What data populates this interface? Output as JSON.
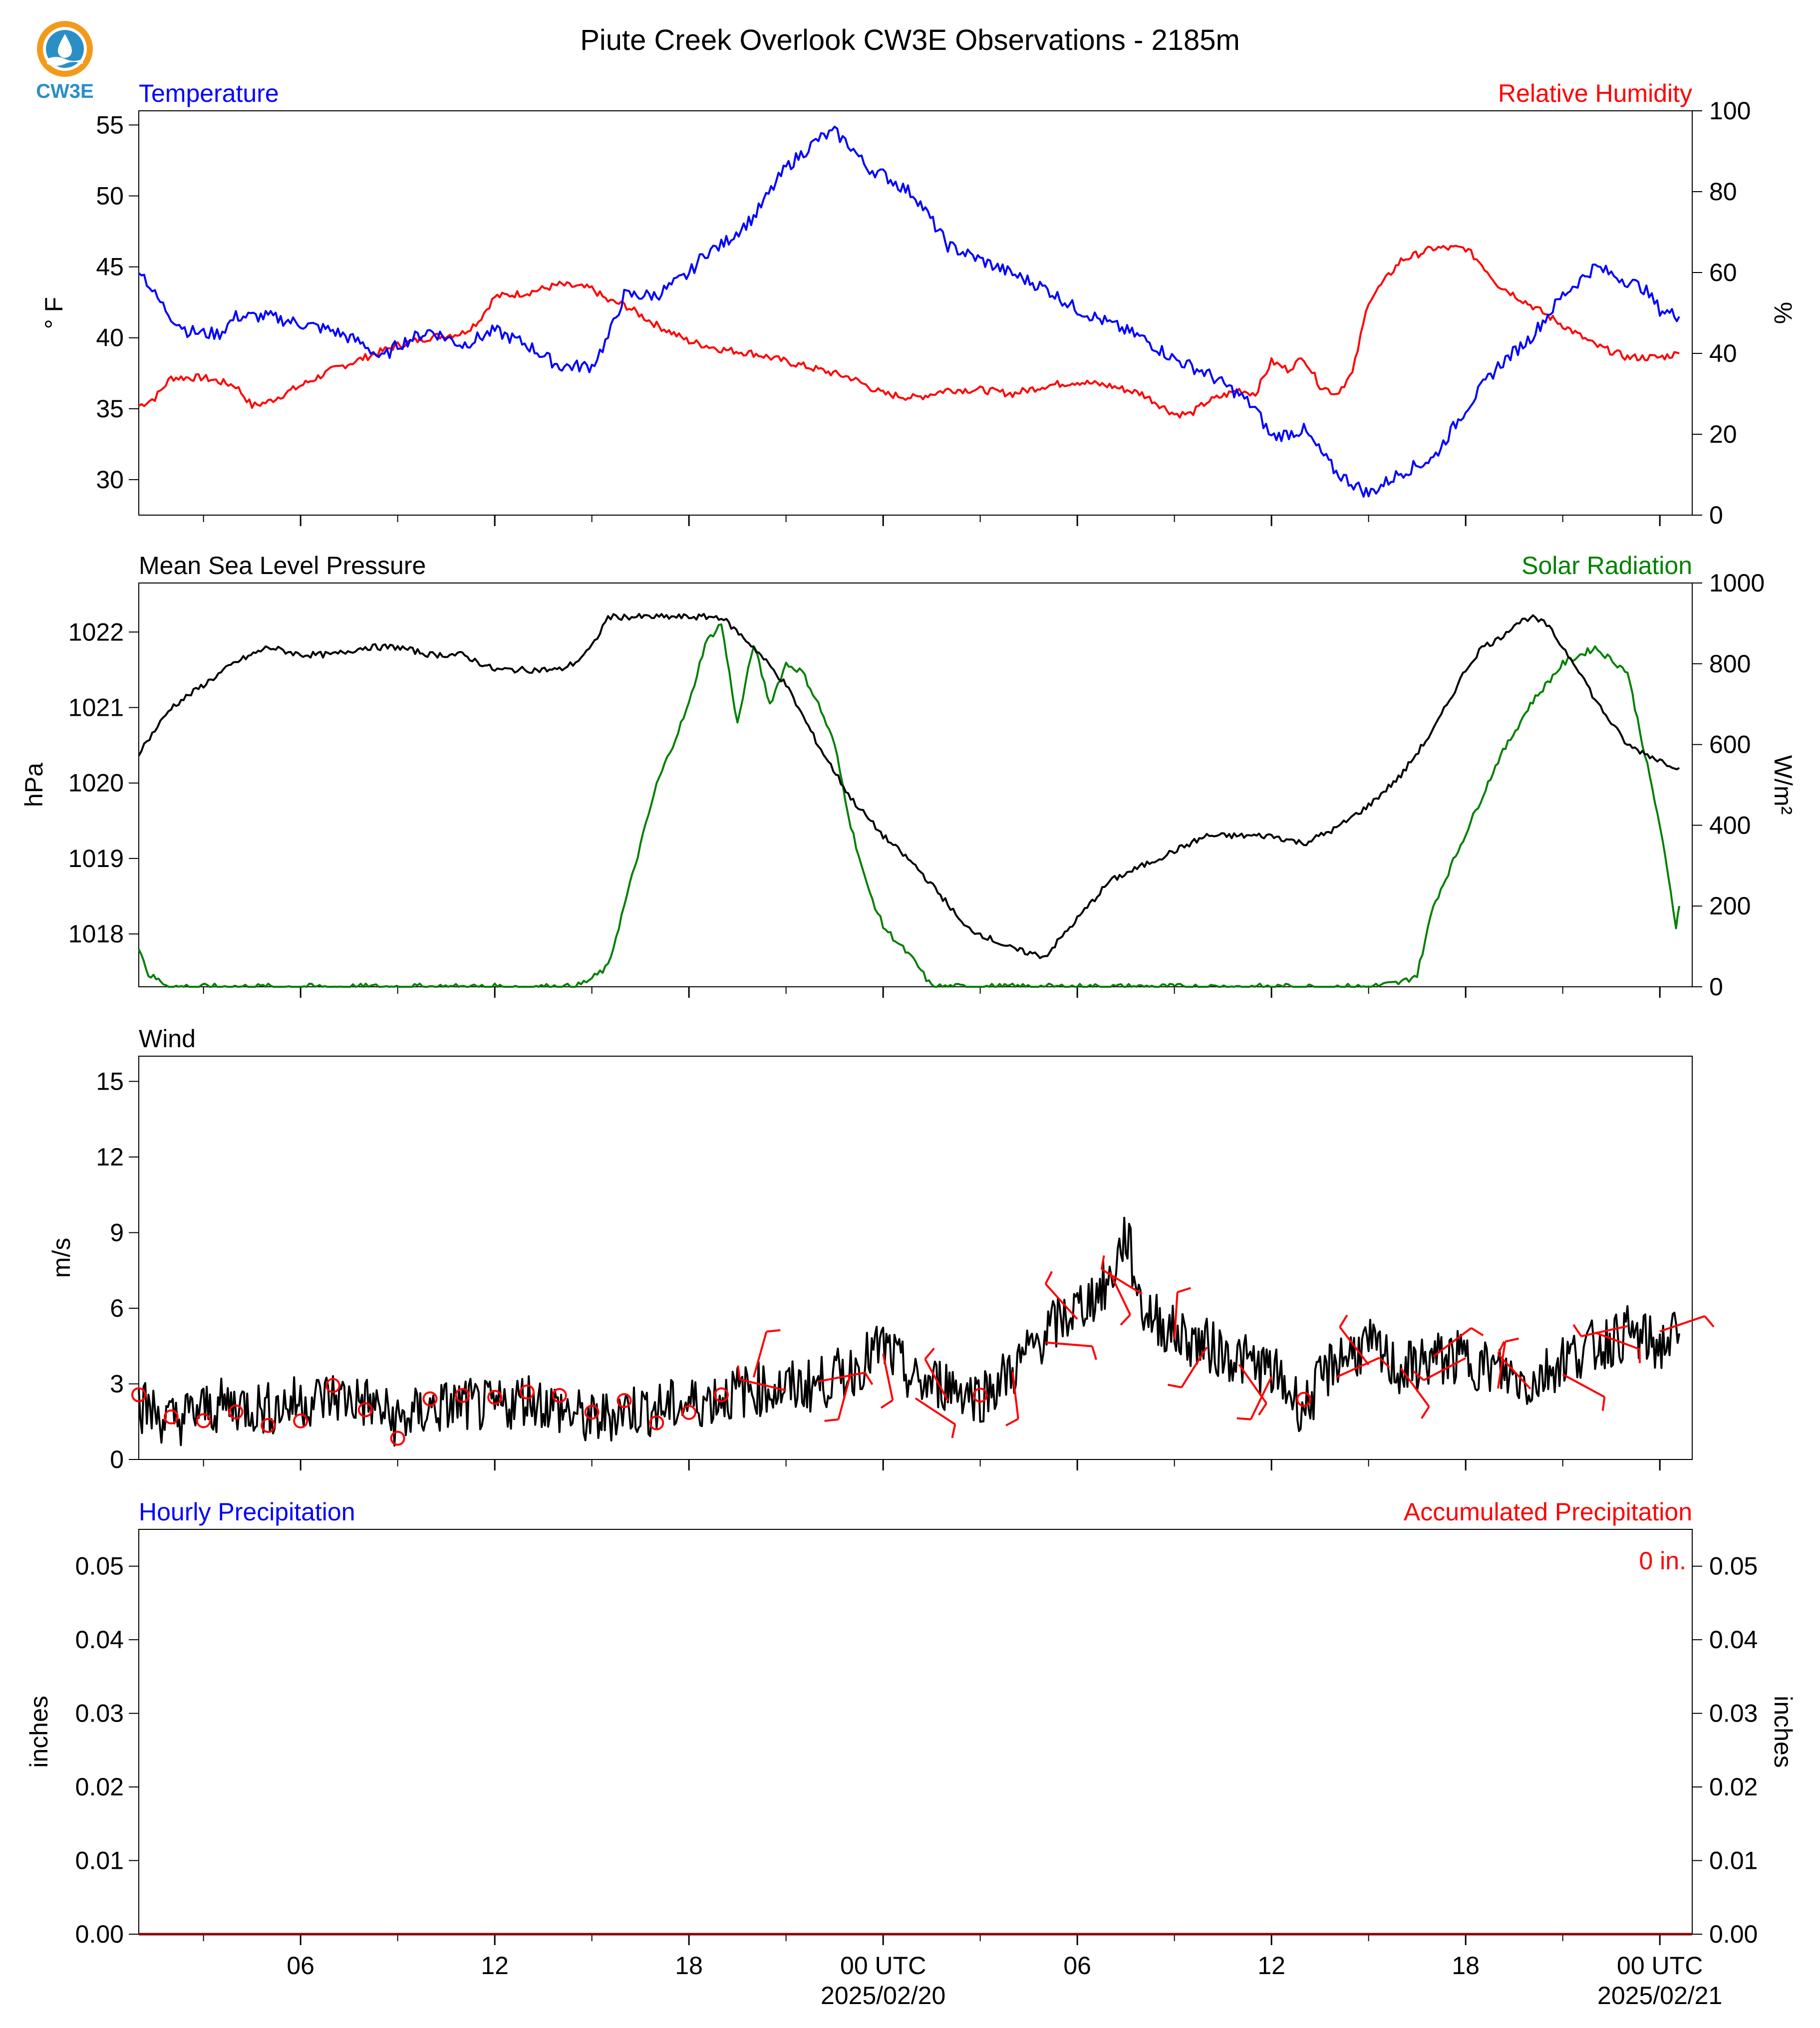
{
  "title": "Piute Creek Overlook CW3E Observations - 2185m",
  "logo": {
    "text": "CW3E",
    "icon": "cw3e-logo-icon"
  },
  "colors": {
    "temperature": "#0000ff",
    "humidity": "#ff0000",
    "pressure": "#000000",
    "solar": "#008000",
    "wind": "#000000",
    "barbs": "#ff0000",
    "accum": "#ff0000",
    "hourly": "#0000ff"
  },
  "time_axis": {
    "tick_labels": [
      "06",
      "12",
      "18",
      "00 UTC",
      "06",
      "12",
      "18",
      "00 UTC"
    ],
    "tick_hours": [
      6,
      12,
      18,
      24,
      30,
      36,
      42,
      48
    ],
    "date_labels": [
      "2025/02/20",
      "2025/02/21"
    ],
    "date_hours": [
      24,
      48
    ]
  },
  "panel_temp": {
    "left_title": "Temperature",
    "right_title": "Relative Humidity",
    "ylabel_left": "° F",
    "ylabel_right": "%",
    "left_ticks": [
      "30",
      "35",
      "40",
      "45",
      "50",
      "55"
    ],
    "right_ticks": [
      "0",
      "20",
      "40",
      "60",
      "80",
      "100"
    ]
  },
  "panel_pressure": {
    "left_title": "Mean Sea Level Pressure",
    "right_title": "Solar Radiation",
    "ylabel_left": "hPa",
    "ylabel_right": "W/m²",
    "left_ticks": [
      "1018",
      "1019",
      "1020",
      "1021",
      "1022"
    ],
    "right_ticks": [
      "0",
      "200",
      "400",
      "600",
      "800",
      "1000"
    ]
  },
  "panel_wind": {
    "left_title": "Wind",
    "ylabel_left": "m/s",
    "left_ticks": [
      "0",
      "3",
      "6",
      "9",
      "12",
      "15"
    ]
  },
  "panel_precip": {
    "left_title": "Hourly Precipitation",
    "right_title": "Accumulated Precipitation",
    "ylabel_left": "inches",
    "ylabel_right": "inches",
    "ticks": [
      "0.00",
      "0.01",
      "0.02",
      "0.03",
      "0.04",
      "0.05"
    ],
    "accum_text": "0 in."
  },
  "chart_data": [
    {
      "type": "line",
      "title": "Temperature",
      "ylabel": "° F",
      "xlim": [
        1,
        49
      ],
      "ylim": [
        27.5,
        56
      ],
      "series": [
        {
          "name": "Temperature",
          "x": [
            1,
            1.5,
            2,
            2.5,
            3,
            3.5,
            4,
            5,
            6,
            7,
            8,
            8.5,
            9,
            10,
            11,
            12,
            13,
            14,
            15,
            15.5,
            16,
            17,
            18,
            18.5,
            19,
            20,
            21,
            22,
            22.5,
            23,
            23.5,
            24,
            25,
            26,
            27,
            28,
            29,
            30,
            31,
            32,
            33,
            34,
            35,
            35.5,
            36,
            37,
            38,
            39,
            40,
            41,
            42,
            43,
            44,
            45,
            46,
            46.5,
            47,
            47.5,
            48,
            48.6
          ],
          "values": [
            45,
            43,
            41.5,
            40.5,
            40.3,
            40.3,
            41.5,
            41.5,
            41,
            40.5,
            39.5,
            38.5,
            39.5,
            40.5,
            39.5,
            40.5,
            39.5,
            38,
            38,
            40,
            43,
            43,
            44.5,
            46,
            46.5,
            48.5,
            52,
            54,
            54.5,
            53.5,
            52,
            51.5,
            50,
            46.5,
            45.5,
            44.5,
            43.5,
            42,
            41,
            40,
            38.5,
            37.5,
            36,
            35,
            33,
            33.5,
            30.5,
            29,
            30.5,
            31.5,
            35,
            38,
            40,
            43,
            45,
            44.5,
            44,
            43.5,
            42,
            41.5
          ]
        },
        {
          "name": "Relative Humidity",
          "axis": "right",
          "ylim": [
            0,
            100
          ],
          "x": [
            1,
            1.5,
            2,
            3,
            4,
            4.5,
            5,
            6,
            7,
            8,
            9,
            10,
            11,
            11.5,
            12,
            13,
            14,
            15,
            15.5,
            16,
            17,
            18,
            19,
            20,
            21,
            22,
            23,
            24,
            25,
            26,
            27,
            28,
            29,
            30,
            31,
            32,
            33,
            33.5,
            34,
            35,
            35.5,
            36,
            36.5,
            37,
            37.5,
            38,
            38.5,
            39,
            40,
            41,
            42,
            42.5,
            43,
            44,
            45,
            46,
            47,
            48,
            48.6
          ],
          "values": [
            27,
            29,
            34,
            34,
            32,
            27,
            28,
            32,
            36,
            39,
            42,
            44,
            45,
            48,
            54,
            55,
            57,
            56,
            53,
            52,
            47,
            43,
            41,
            40,
            38,
            36,
            34,
            30,
            29,
            31,
            31,
            30,
            32,
            33,
            32,
            30,
            25,
            25,
            28,
            31,
            30,
            38,
            36,
            39,
            32,
            30,
            35,
            53,
            63,
            66,
            66,
            62,
            57,
            52,
            47,
            42,
            39,
            39,
            40
          ]
        }
      ]
    },
    {
      "type": "line",
      "title": "Mean Sea Level Pressure",
      "ylabel": "hPa",
      "xlim": [
        1,
        49
      ],
      "ylim": [
        1017.3,
        1022.65
      ],
      "series": [
        {
          "name": "Mean Sea Level Pressure",
          "x": [
            1,
            1.5,
            2,
            3,
            4,
            5,
            6,
            7,
            8,
            9,
            10,
            11,
            12,
            13,
            14,
            14.5,
            15,
            15.5,
            16,
            17,
            18,
            19,
            20,
            21,
            22,
            23,
            24,
            25,
            26,
            26.5,
            27,
            28,
            29,
            30,
            31,
            32,
            33,
            34,
            35,
            36,
            37,
            38,
            39,
            40,
            41,
            41.5,
            42,
            42.5,
            43,
            43.5,
            44,
            44.5,
            45,
            45.5,
            46,
            46.5,
            47,
            48,
            48.6
          ],
          "values": [
            1020.4,
            1020.7,
            1021,
            1021.3,
            1021.6,
            1021.8,
            1021.7,
            1021.7,
            1021.8,
            1021.8,
            1021.7,
            1021.7,
            1021.5,
            1021.5,
            1021.5,
            1021.6,
            1021.8,
            1022.2,
            1022.2,
            1022.2,
            1022.2,
            1022.2,
            1021.8,
            1021.3,
            1020.5,
            1019.8,
            1019.3,
            1018.9,
            1018.4,
            1018.1,
            1018,
            1017.8,
            1017.7,
            1018.2,
            1018.7,
            1018.9,
            1019.1,
            1019.3,
            1019.3,
            1019.3,
            1019.2,
            1019.4,
            1019.7,
            1020.1,
            1020.7,
            1021.1,
            1021.5,
            1021.8,
            1021.9,
            1022.1,
            1022.2,
            1022.1,
            1021.8,
            1021.5,
            1021.1,
            1020.8,
            1020.5,
            1020.3,
            1020.2
          ]
        },
        {
          "name": "Solar Radiation",
          "axis": "right",
          "ylim": [
            0,
            1000
          ],
          "x": [
            1,
            1.3,
            2,
            5,
            10,
            14,
            14.5,
            15,
            15.5,
            16,
            16.5,
            17,
            17.5,
            18,
            18.5,
            19,
            19.5,
            20,
            20.5,
            21,
            21.5,
            22,
            22.5,
            23,
            23.5,
            24,
            25,
            25.5,
            26,
            30,
            35,
            39,
            40,
            40.5,
            41,
            42,
            43,
            44,
            45,
            46,
            47,
            48,
            48.5,
            48.6
          ],
          "values": [
            100,
            30,
            0,
            0,
            0,
            0,
            0,
            20,
            50,
            200,
            350,
            500,
            600,
            700,
            850,
            900,
            650,
            850,
            700,
            800,
            780,
            700,
            600,
            400,
            250,
            150,
            60,
            0,
            0,
            0,
            0,
            0,
            10,
            30,
            200,
            380,
            560,
            700,
            800,
            840,
            780,
            400,
            150,
            200
          ]
        }
      ]
    },
    {
      "type": "line",
      "title": "Wind",
      "ylabel": "m/s",
      "xlim": [
        1,
        49
      ],
      "ylim": [
        0,
        16
      ],
      "series": [
        {
          "name": "Wind",
          "x": [
            1,
            2,
            3,
            4,
            5,
            6,
            7,
            8,
            9,
            10,
            11,
            12,
            13,
            14,
            15,
            16,
            17,
            18,
            19,
            20,
            21,
            22,
            23,
            24,
            25,
            26,
            27,
            28,
            29,
            30,
            31,
            31.5,
            32,
            33,
            34,
            35,
            36,
            37,
            38,
            39,
            40,
            41,
            42,
            43,
            44,
            45,
            46,
            47,
            48,
            48.6
          ],
          "values": [
            2.2,
            1.5,
            2.0,
            2.2,
            2.0,
            2.3,
            2.5,
            2.3,
            1.5,
            2.0,
            2.2,
            2.0,
            2.5,
            2.0,
            1.5,
            2.0,
            2.0,
            2.2,
            2.5,
            2.8,
            2.8,
            3.0,
            3.5,
            4.5,
            3.0,
            3.0,
            2.5,
            3.5,
            5.0,
            6.0,
            7.0,
            9.0,
            6.0,
            5.0,
            4.5,
            4.0,
            3.5,
            2.0,
            4.0,
            4.5,
            3.5,
            4.0,
            4.0,
            3.5,
            3.0,
            4.0,
            4.5,
            5.0,
            4.5,
            5.0
          ]
        }
      ]
    },
    {
      "type": "line",
      "title": "Hourly Precipitation",
      "ylabel": "inches",
      "xlim": [
        1,
        49
      ],
      "ylim": [
        0,
        0.055
      ],
      "series": [
        {
          "name": "Hourly Precipitation",
          "x": [
            1,
            48.6
          ],
          "values": [
            0,
            0
          ]
        },
        {
          "name": "Accumulated Precipitation",
          "axis": "right",
          "x": [
            1,
            48.6
          ],
          "values": [
            0,
            0
          ]
        }
      ]
    }
  ]
}
